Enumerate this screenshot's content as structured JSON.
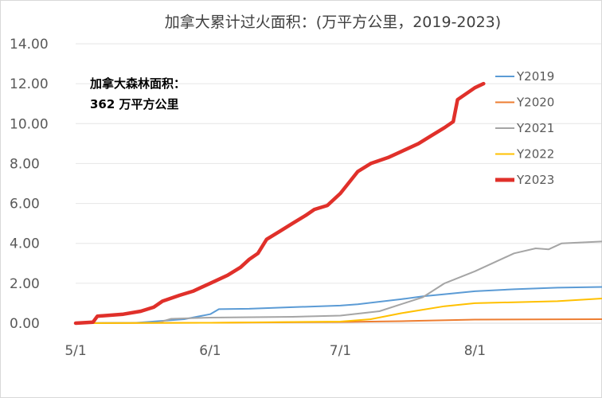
{
  "chart_data": {
    "type": "line",
    "title": "加拿大累计过火面积：(万平方公里，2019-2023)",
    "x_ticks": [
      "5/1",
      "6/1",
      "7/1",
      "8/1"
    ],
    "x_range": [
      "05-01",
      "08-31"
    ],
    "y_ticks": [
      "0.00",
      "2.00",
      "4.00",
      "6.00",
      "8.00",
      "10.00",
      "12.00",
      "14.00"
    ],
    "ylim": [
      0,
      14
    ],
    "grid": "horizontal",
    "legend_position": "right",
    "annotation": [
      "加拿大森林面积：",
      "362 万平方公里"
    ],
    "series": [
      {
        "name": "Y2019",
        "color": "#5b9bd5",
        "points": [
          [
            "05-01",
            0
          ],
          [
            "05-15",
            0.02
          ],
          [
            "05-26",
            0.2
          ],
          [
            "06-01",
            0.45
          ],
          [
            "06-03",
            0.7
          ],
          [
            "06-10",
            0.72
          ],
          [
            "06-20",
            0.8
          ],
          [
            "07-01",
            0.88
          ],
          [
            "07-05",
            0.95
          ],
          [
            "07-15",
            1.2
          ],
          [
            "07-20",
            1.35
          ],
          [
            "07-25",
            1.45
          ],
          [
            "08-01",
            1.6
          ],
          [
            "08-10",
            1.7
          ],
          [
            "08-20",
            1.78
          ],
          [
            "08-31",
            1.82
          ]
        ]
      },
      {
        "name": "Y2020",
        "color": "#ed7d31",
        "points": [
          [
            "05-01",
            0
          ],
          [
            "06-01",
            0.02
          ],
          [
            "07-01",
            0.06
          ],
          [
            "07-15",
            0.1
          ],
          [
            "08-01",
            0.18
          ],
          [
            "08-31",
            0.2
          ]
        ]
      },
      {
        "name": "Y2021",
        "color": "#a5a5a5",
        "points": [
          [
            "05-01",
            0
          ],
          [
            "05-20",
            0.03
          ],
          [
            "05-23",
            0.22
          ],
          [
            "06-01",
            0.28
          ],
          [
            "06-20",
            0.32
          ],
          [
            "07-01",
            0.38
          ],
          [
            "07-10",
            0.6
          ],
          [
            "07-20",
            1.3
          ],
          [
            "07-25",
            2.0
          ],
          [
            "08-01",
            2.6
          ],
          [
            "08-05",
            3.0
          ],
          [
            "08-10",
            3.5
          ],
          [
            "08-15",
            3.75
          ],
          [
            "08-18",
            3.7
          ],
          [
            "08-21",
            4.0
          ],
          [
            "08-31",
            4.1
          ]
        ]
      },
      {
        "name": "Y2022",
        "color": "#ffc000",
        "points": [
          [
            "05-01",
            0
          ],
          [
            "06-01",
            0.02
          ],
          [
            "07-01",
            0.08
          ],
          [
            "07-08",
            0.2
          ],
          [
            "07-15",
            0.5
          ],
          [
            "07-25",
            0.85
          ],
          [
            "08-01",
            1.0
          ],
          [
            "08-10",
            1.05
          ],
          [
            "08-20",
            1.1
          ],
          [
            "08-31",
            1.25
          ]
        ]
      },
      {
        "name": "Y2023",
        "color": "#e0302a",
        "points": [
          [
            "05-01",
            0
          ],
          [
            "05-05",
            0.05
          ],
          [
            "05-06",
            0.35
          ],
          [
            "05-12",
            0.45
          ],
          [
            "05-16",
            0.6
          ],
          [
            "05-19",
            0.8
          ],
          [
            "05-21",
            1.1
          ],
          [
            "05-25",
            1.4
          ],
          [
            "05-28",
            1.6
          ],
          [
            "06-01",
            2.0
          ],
          [
            "06-05",
            2.4
          ],
          [
            "06-08",
            2.8
          ],
          [
            "06-10",
            3.2
          ],
          [
            "06-12",
            3.5
          ],
          [
            "06-14",
            4.2
          ],
          [
            "06-17",
            4.6
          ],
          [
            "06-20",
            5.0
          ],
          [
            "06-23",
            5.4
          ],
          [
            "06-25",
            5.7
          ],
          [
            "06-28",
            5.9
          ],
          [
            "07-01",
            6.5
          ],
          [
            "07-05",
            7.6
          ],
          [
            "07-08",
            8.0
          ],
          [
            "07-12",
            8.3
          ],
          [
            "07-15",
            8.6
          ],
          [
            "07-19",
            9.0
          ],
          [
            "07-22",
            9.4
          ],
          [
            "07-25",
            9.8
          ],
          [
            "07-27",
            10.1
          ],
          [
            "07-28",
            11.2
          ],
          [
            "07-30",
            11.5
          ],
          [
            "08-01",
            11.8
          ],
          [
            "08-03",
            12.0
          ]
        ]
      }
    ]
  }
}
